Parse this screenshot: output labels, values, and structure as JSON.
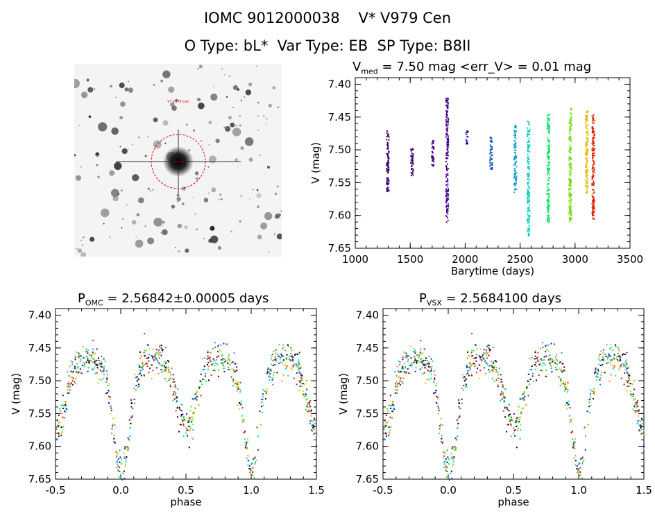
{
  "header": {
    "line1": "IOMC 9012000038    V* V979 Cen",
    "line2": "O Type: bL*  Var Type: EB  SP Type: B8II"
  },
  "finder_chart": {
    "target_label": "V* V979 Cen"
  },
  "chart_data": [
    {
      "type": "scatter",
      "title_main": "V",
      "title_sub": "med",
      "title_rest": " = 7.50 mag <err_V> = 0.01 mag",
      "xlabel": "Barytime (days)",
      "ylabel": "V (mag)",
      "xlim": [
        1000,
        3500
      ],
      "ylim": [
        7.65,
        7.39
      ],
      "y_inverted": true,
      "xticks": [
        "1000",
        "1500",
        "2000",
        "2500",
        "3000",
        "3500"
      ],
      "yticks": [
        "7.40",
        "7.45",
        "7.50",
        "7.55",
        "7.60",
        "7.65"
      ],
      "x_tick_values": [
        1000,
        1500,
        2000,
        2500,
        3000,
        3500
      ],
      "y_tick_values": [
        7.4,
        7.45,
        7.5,
        7.55,
        7.6,
        7.65
      ],
      "series": [
        {
          "x": 1290,
          "y_min": 7.47,
          "y_max": 7.565,
          "color": "#3a0070"
        },
        {
          "x": 1510,
          "y_min": 7.495,
          "y_max": 7.54,
          "color": "#3a0070"
        },
        {
          "x": 1700,
          "y_min": 7.485,
          "y_max": 7.525,
          "color": "#4b0090"
        },
        {
          "x": 1830,
          "y_min": 7.42,
          "y_max": 7.61,
          "color": "#4b0090"
        },
        {
          "x": 2010,
          "y_min": 7.47,
          "y_max": 7.49,
          "color": "#1a1aaa"
        },
        {
          "x": 2230,
          "y_min": 7.48,
          "y_max": 7.53,
          "color": "#1050c0"
        },
        {
          "x": 2450,
          "y_min": 7.46,
          "y_max": 7.565,
          "color": "#10a0d0"
        },
        {
          "x": 2570,
          "y_min": 7.455,
          "y_max": 7.63,
          "color": "#10d0c0"
        },
        {
          "x": 2750,
          "y_min": 7.445,
          "y_max": 7.61,
          "color": "#10e060"
        },
        {
          "x": 2950,
          "y_min": 7.435,
          "y_max": 7.61,
          "color": "#70e010"
        },
        {
          "x": 3100,
          "y_min": 7.44,
          "y_max": 7.565,
          "color": "#e0c000"
        },
        {
          "x": 3160,
          "y_min": 7.445,
          "y_max": 7.605,
          "color": "#e02000"
        }
      ]
    },
    {
      "type": "scatter",
      "title_main": "P",
      "title_sub": "OMC",
      "title_rest": " = 2.56842±0.00005 days",
      "xlabel": "phase",
      "ylabel": "V (mag)",
      "xlim": [
        -0.5,
        1.5
      ],
      "ylim": [
        7.65,
        7.39
      ],
      "y_inverted": true,
      "xticks": [
        "-0.5",
        "0.0",
        "0.5",
        "1.0",
        "1.5"
      ],
      "yticks": [
        "7.40",
        "7.45",
        "7.50",
        "7.55",
        "7.60",
        "7.65"
      ],
      "x_tick_values": [
        -0.5,
        0.0,
        0.5,
        1.0,
        1.5
      ],
      "y_tick_values": [
        7.4,
        7.45,
        7.5,
        7.55,
        7.6,
        7.65
      ],
      "light_curve": {
        "max_mag": 7.48,
        "primary_min_phase": 0.0,
        "primary_min_mag": 7.62,
        "secondary_min_phase": 0.5,
        "secondary_min_mag": 7.56
      }
    },
    {
      "type": "scatter",
      "title_main": "P",
      "title_sub": "VSX",
      "title_rest": " = 2.5684100 days",
      "xlabel": "phase",
      "ylabel": "V (mag)",
      "xlim": [
        -0.5,
        1.5
      ],
      "ylim": [
        7.65,
        7.39
      ],
      "y_inverted": true,
      "xticks": [
        "-0.5",
        "0.0",
        "0.5",
        "1.0",
        "1.5"
      ],
      "yticks": [
        "7.40",
        "7.45",
        "7.50",
        "7.55",
        "7.60",
        "7.65"
      ],
      "x_tick_values": [
        -0.5,
        0.0,
        0.5,
        1.0,
        1.5
      ],
      "y_tick_values": [
        7.4,
        7.45,
        7.5,
        7.55,
        7.6,
        7.65
      ],
      "light_curve": {
        "max_mag": 7.48,
        "primary_min_phase": 0.0,
        "primary_min_mag": 7.62,
        "secondary_min_phase": 0.5,
        "secondary_min_mag": 7.56
      }
    }
  ],
  "colors": {
    "palette": [
      "#3a0070",
      "#1a1aaa",
      "#10a0d0",
      "#10d0c0",
      "#10e060",
      "#70e010",
      "#e0c000",
      "#ff8000",
      "#e02000",
      "#000000"
    ],
    "circle": "#e00000"
  }
}
